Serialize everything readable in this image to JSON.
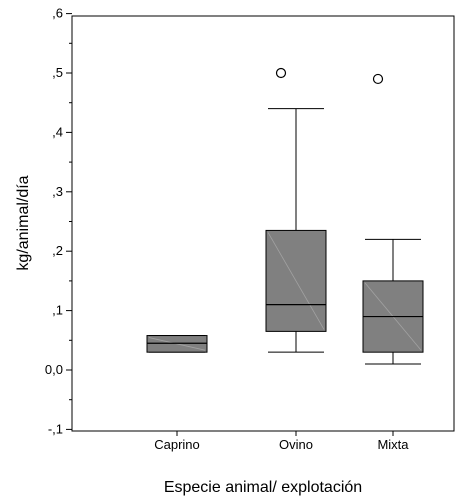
{
  "chart_data": {
    "type": "boxplot",
    "xlabel": "Especie animal/ explotación",
    "ylabel": "kg/animal/día",
    "ylim": [
      -0.1,
      0.6
    ],
    "yticks": [
      {
        "value": 0.6,
        "label": ",6"
      },
      {
        "value": 0.5,
        "label": ",5"
      },
      {
        "value": 0.4,
        "label": ",4"
      },
      {
        "value": 0.3,
        "label": ",3"
      },
      {
        "value": 0.2,
        "label": ",2"
      },
      {
        "value": 0.1,
        "label": ",1"
      },
      {
        "value": 0.0,
        "label": "0,0"
      },
      {
        "value": -0.1,
        "label": "-,1"
      }
    ],
    "yminor": [
      0.55,
      0.45,
      0.35,
      0.25,
      0.15,
      0.05,
      -0.05
    ],
    "categories": [
      "Caprino",
      "Ovino",
      "Mixta"
    ],
    "boxes": [
      {
        "category": "Caprino",
        "min": 0.03,
        "q1": 0.03,
        "median": 0.045,
        "q3": 0.058,
        "max": 0.058,
        "outliers": []
      },
      {
        "category": "Ovino",
        "min": 0.03,
        "q1": 0.065,
        "median": 0.11,
        "q3": 0.235,
        "max": 0.44,
        "outliers": [
          0.5
        ]
      },
      {
        "category": "Mixta",
        "min": 0.01,
        "q1": 0.03,
        "median": 0.09,
        "q3": 0.15,
        "max": 0.22,
        "outliers": [
          0.49
        ]
      }
    ],
    "colors": {
      "box_fill": "#808080",
      "box_stroke": "#000000",
      "outlier_fill": "#ffffff"
    }
  }
}
